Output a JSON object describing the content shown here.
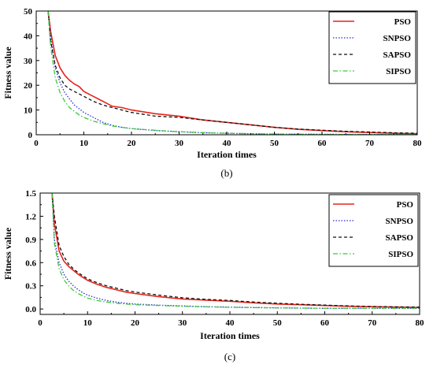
{
  "chart_data": [
    {
      "type": "line",
      "caption": "(b)",
      "xlabel": "Iteration times",
      "ylabel": "Fitness value",
      "xlim": [
        0,
        80
      ],
      "ylim": [
        0,
        50
      ],
      "xticks": [
        "0",
        "10",
        "20",
        "30",
        "40",
        "50",
        "60",
        "70",
        "80"
      ],
      "yticks": [
        "0",
        "10",
        "20",
        "30",
        "40",
        "50"
      ],
      "legend_position": "top-right",
      "series": [
        {
          "name": "PSO",
          "color": "#e8221a",
          "dash": "solid",
          "x": [
            2.5,
            3,
            4,
            5,
            6,
            7,
            8,
            9,
            10,
            12,
            14,
            16,
            18,
            20,
            25,
            30,
            35,
            40,
            45,
            50,
            55,
            60,
            65,
            70,
            75,
            80
          ],
          "y": [
            50,
            42,
            32,
            27,
            24,
            22,
            20.5,
            19.5,
            17.5,
            15.5,
            13.5,
            11.5,
            11,
            10,
            8.5,
            7.5,
            6,
            5,
            4,
            3,
            2.2,
            1.7,
            1.2,
            0.9,
            0.6,
            0.4
          ]
        },
        {
          "name": "SNPSO",
          "color": "#2a2ad8",
          "dash": "dot",
          "x": [
            2.5,
            3,
            4,
            5,
            6,
            7,
            8,
            9,
            10,
            12,
            14,
            16,
            18,
            20,
            25,
            30,
            35,
            40,
            45,
            50,
            55,
            60,
            65,
            70,
            75,
            80
          ],
          "y": [
            50,
            40,
            27,
            21,
            17,
            14.5,
            12,
            10.5,
            9,
            7,
            5,
            3.8,
            3,
            2.5,
            1.7,
            1.2,
            0.8,
            0.6,
            0.4,
            0.3,
            0.25,
            0.2,
            0.15,
            0.1,
            0.1,
            0.1
          ]
        },
        {
          "name": "SAPSO",
          "color": "#111111",
          "dash": "dash",
          "x": [
            2.5,
            3,
            4,
            5,
            6,
            7,
            8,
            9,
            10,
            12,
            14,
            16,
            18,
            20,
            25,
            30,
            35,
            40,
            45,
            50,
            55,
            60,
            65,
            70,
            75,
            80
          ],
          "y": [
            50,
            38,
            28,
            23,
            20,
            18.5,
            17.5,
            16.5,
            15.5,
            13.5,
            12,
            11,
            10,
            9,
            7.5,
            7,
            6,
            5,
            4,
            3,
            2.3,
            1.8,
            1.4,
            1.1,
            0.8,
            0.6
          ]
        },
        {
          "name": "SIPSO",
          "color": "#3ec83e",
          "dash": "dashdot",
          "x": [
            2.5,
            3,
            4,
            5,
            6,
            7,
            8,
            9,
            10,
            12,
            14,
            16,
            18,
            20,
            25,
            30,
            35,
            40,
            45,
            50,
            55,
            60,
            65,
            70,
            75,
            80
          ],
          "y": [
            50,
            36,
            23,
            17,
            13.5,
            11,
            9.5,
            8,
            7,
            5.5,
            4.5,
            3.5,
            3,
            2.5,
            1.8,
            1.2,
            0.9,
            0.6,
            0.4,
            0.3,
            0.2,
            0.15,
            0.1,
            0.1,
            0.1,
            0.1
          ]
        }
      ]
    },
    {
      "type": "line",
      "caption": "(c)",
      "xlabel": "Iteration times",
      "ylabel": "Fitness value",
      "xlim": [
        0,
        80
      ],
      "ylim": [
        -0.07,
        1.5
      ],
      "xticks": [
        "0",
        "10",
        "20",
        "30",
        "40",
        "50",
        "60",
        "70",
        "80"
      ],
      "yticks": [
        "0.0",
        "0.3",
        "0.6",
        "0.9",
        "1.2",
        "1.5"
      ],
      "legend_position": "top-right",
      "series": [
        {
          "name": "PSO",
          "color": "#e8221a",
          "dash": "solid",
          "x": [
            2.5,
            3,
            4,
            5,
            6,
            7,
            8,
            9,
            10,
            12,
            14,
            16,
            18,
            20,
            25,
            30,
            35,
            40,
            45,
            50,
            55,
            60,
            65,
            70,
            75,
            80
          ],
          "y": [
            1.5,
            1.1,
            0.75,
            0.62,
            0.55,
            0.5,
            0.45,
            0.41,
            0.37,
            0.32,
            0.28,
            0.25,
            0.22,
            0.2,
            0.16,
            0.13,
            0.115,
            0.1,
            0.08,
            0.065,
            0.055,
            0.045,
            0.035,
            0.03,
            0.025,
            0.02
          ]
        },
        {
          "name": "SNPSO",
          "color": "#2a2ad8",
          "dash": "dot",
          "x": [
            2.5,
            3,
            4,
            5,
            6,
            7,
            8,
            9,
            10,
            12,
            14,
            16,
            18,
            20,
            25,
            30,
            35,
            40,
            45,
            50,
            55,
            60,
            65,
            70,
            75,
            80
          ],
          "y": [
            1.5,
            0.9,
            0.6,
            0.45,
            0.36,
            0.3,
            0.25,
            0.21,
            0.18,
            0.14,
            0.11,
            0.09,
            0.075,
            0.065,
            0.05,
            0.04,
            0.03,
            0.025,
            0.02,
            0.015,
            0.012,
            0.01,
            0.01,
            0.01,
            0.01,
            0.01
          ]
        },
        {
          "name": "SAPSO",
          "color": "#111111",
          "dash": "dash",
          "x": [
            2.5,
            3,
            4,
            5,
            6,
            7,
            8,
            9,
            10,
            12,
            14,
            16,
            18,
            20,
            25,
            30,
            35,
            40,
            45,
            50,
            55,
            60,
            65,
            70,
            75,
            80
          ],
          "y": [
            1.5,
            1.2,
            0.82,
            0.68,
            0.58,
            0.52,
            0.47,
            0.43,
            0.39,
            0.34,
            0.3,
            0.27,
            0.24,
            0.22,
            0.18,
            0.145,
            0.125,
            0.11,
            0.09,
            0.075,
            0.06,
            0.05,
            0.04,
            0.032,
            0.028,
            0.025
          ]
        },
        {
          "name": "SIPSO",
          "color": "#3ec83e",
          "dash": "dashdot",
          "x": [
            2.5,
            3,
            4,
            5,
            6,
            7,
            8,
            9,
            10,
            12,
            14,
            16,
            18,
            20,
            25,
            30,
            35,
            40,
            45,
            50,
            55,
            60,
            65,
            70,
            75,
            80
          ],
          "y": [
            1.5,
            0.85,
            0.52,
            0.38,
            0.3,
            0.24,
            0.2,
            0.17,
            0.14,
            0.11,
            0.09,
            0.075,
            0.065,
            0.055,
            0.045,
            0.035,
            0.028,
            0.022,
            0.018,
            0.015,
            0.012,
            0.01,
            0.01,
            0.01,
            0.01,
            0.01
          ]
        }
      ]
    }
  ]
}
